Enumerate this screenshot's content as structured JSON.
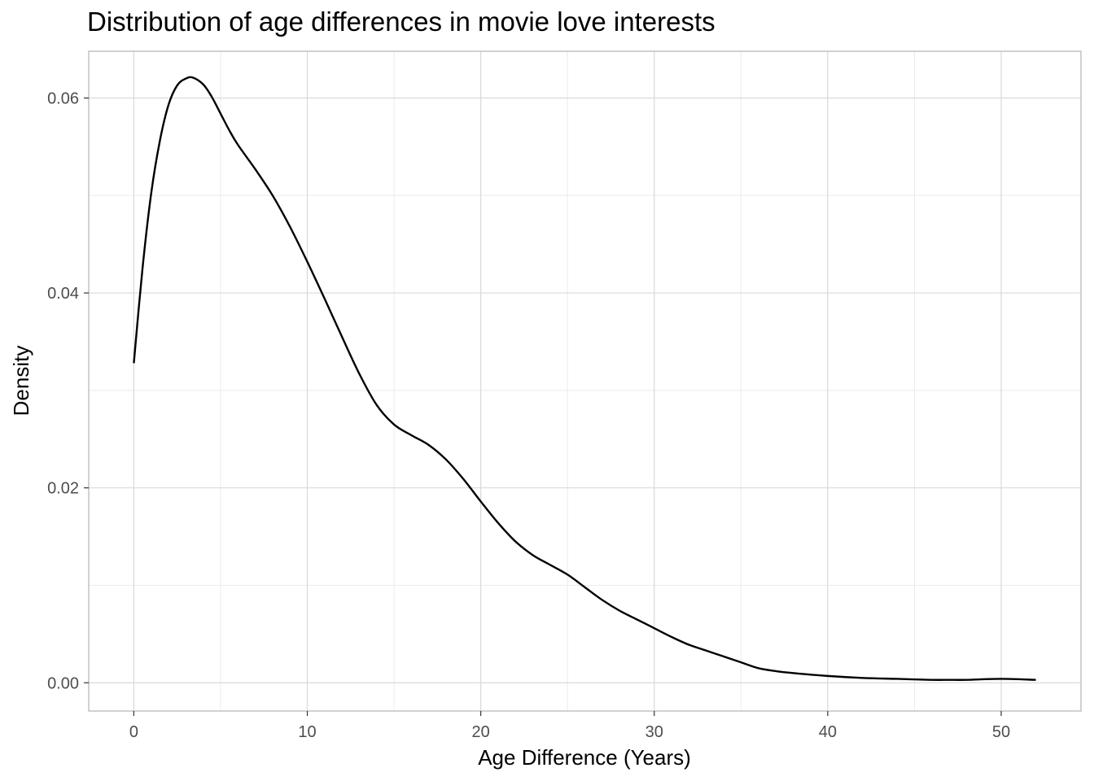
{
  "chart_data": {
    "type": "line",
    "title": "Distribution of age differences in movie love interests",
    "xlabel": "Age Difference (Years)",
    "ylabel": "Density",
    "xlim": [
      -2.6,
      54.6
    ],
    "ylim": [
      -0.0029,
      0.0648
    ],
    "x_ticks": [
      0,
      10,
      20,
      30,
      40,
      50
    ],
    "x_tick_labels": [
      "0",
      "10",
      "20",
      "30",
      "40",
      "50"
    ],
    "y_ticks": [
      0.0,
      0.02,
      0.04,
      0.06
    ],
    "y_tick_labels": [
      "0.00",
      "0.02",
      "0.04",
      "0.06"
    ],
    "grid": true,
    "series": [
      {
        "x": [
          0,
          0.5,
          1,
          1.5,
          2,
          2.5,
          3,
          3.4,
          4,
          4.5,
          5,
          5.5,
          6,
          7,
          8,
          9,
          10,
          11,
          12,
          13,
          14,
          15,
          16,
          17,
          18,
          19,
          20,
          21,
          22,
          23,
          24,
          25,
          26,
          27,
          28,
          29,
          30,
          31,
          32,
          33,
          34,
          35,
          36,
          37,
          38,
          40,
          42,
          44,
          46,
          47,
          48,
          50,
          52
        ],
        "y": [
          0.0328,
          0.0425,
          0.0502,
          0.0556,
          0.0593,
          0.0613,
          0.062,
          0.0621,
          0.0614,
          0.0601,
          0.0584,
          0.0567,
          0.0552,
          0.0527,
          0.05,
          0.0468,
          0.0432,
          0.0394,
          0.0355,
          0.0317,
          0.0285,
          0.0265,
          0.0254,
          0.0244,
          0.0229,
          0.0209,
          0.0186,
          0.0164,
          0.0145,
          0.0131,
          0.0121,
          0.0111,
          0.0098,
          0.0085,
          0.0074,
          0.0065,
          0.0056,
          0.0047,
          0.0039,
          0.0033,
          0.0027,
          0.0021,
          0.0015,
          0.0012,
          0.001,
          0.0007,
          0.0005,
          0.0004,
          0.0003,
          0.0003,
          0.0003,
          0.0004,
          0.0003
        ],
        "color": "#000000"
      }
    ],
    "colors": {
      "panel_border": "#b3b3b3",
      "grid_major": "#d9d9d9",
      "grid_minor": "#ebebeb"
    }
  }
}
